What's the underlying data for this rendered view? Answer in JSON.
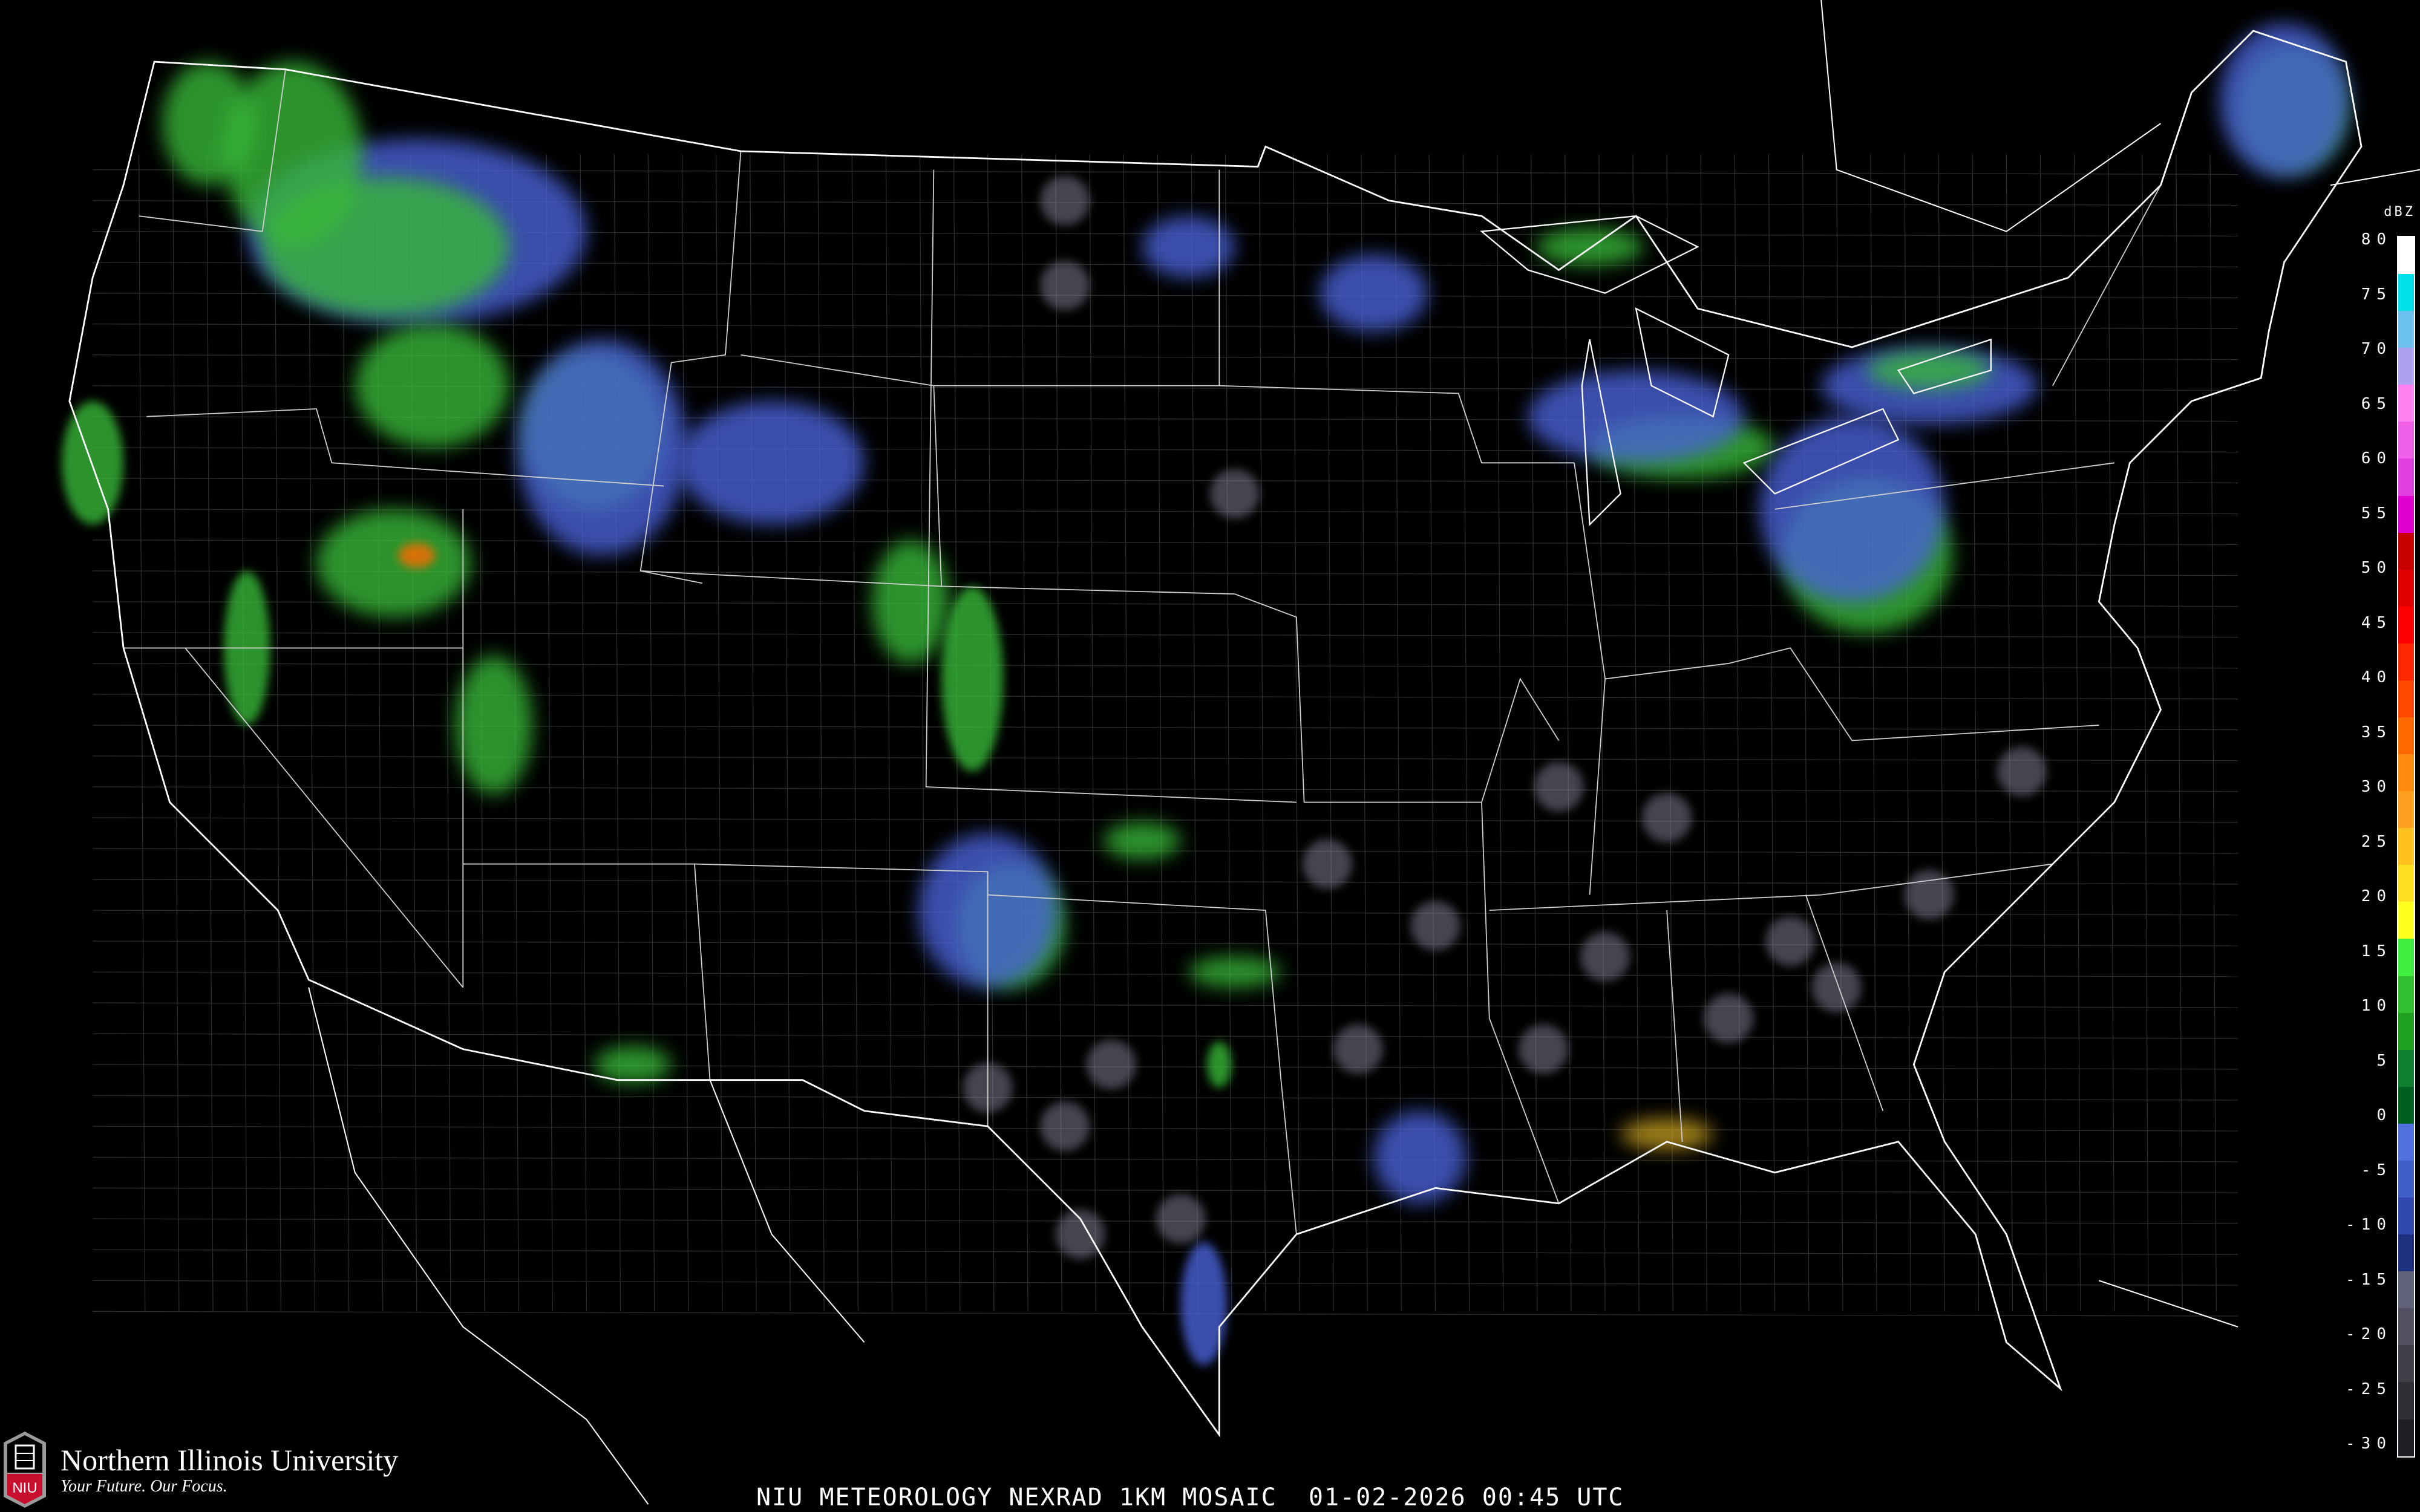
{
  "title": "NIU METEOROLOGY NEXRAD 1KM MOSAIC  01-02-2026 00:45 UTC",
  "logo": {
    "name": "Northern Illinois University",
    "tagline": "Your Future. Our Focus.",
    "badge": "NIU"
  },
  "legend": {
    "unit": "dBZ",
    "labels": [
      "80",
      "75",
      "70",
      "65",
      "60",
      "55",
      "50",
      "45",
      "40",
      "35",
      "30",
      "25",
      "20",
      "15",
      "10",
      "5",
      "0",
      "-5",
      "-10",
      "-15",
      "-20",
      "-25",
      "-30"
    ],
    "colors": [
      "#ffffff",
      "#00e0e8",
      "#6cc0f0",
      "#b0a0f0",
      "#ff80f0",
      "#f060e8",
      "#e040e0",
      "#e000d0",
      "#c80000",
      "#e00000",
      "#ff0000",
      "#ff2800",
      "#ff4800",
      "#ff6a00",
      "#ff8c10",
      "#ffa020",
      "#ffc020",
      "#ffe020",
      "#ffff20",
      "#40f040",
      "#30c030",
      "#20a020",
      "#108030",
      "#006020",
      "#5070e0",
      "#4060c8",
      "#3048b0",
      "#203080",
      "#606078",
      "#505060",
      "#404048",
      "#303034",
      "#202024"
    ]
  },
  "colors": {
    "background": "#000000",
    "borders": "#ffffff",
    "county_lines": "#3a3a3a",
    "roads": "#7a3a10"
  }
}
